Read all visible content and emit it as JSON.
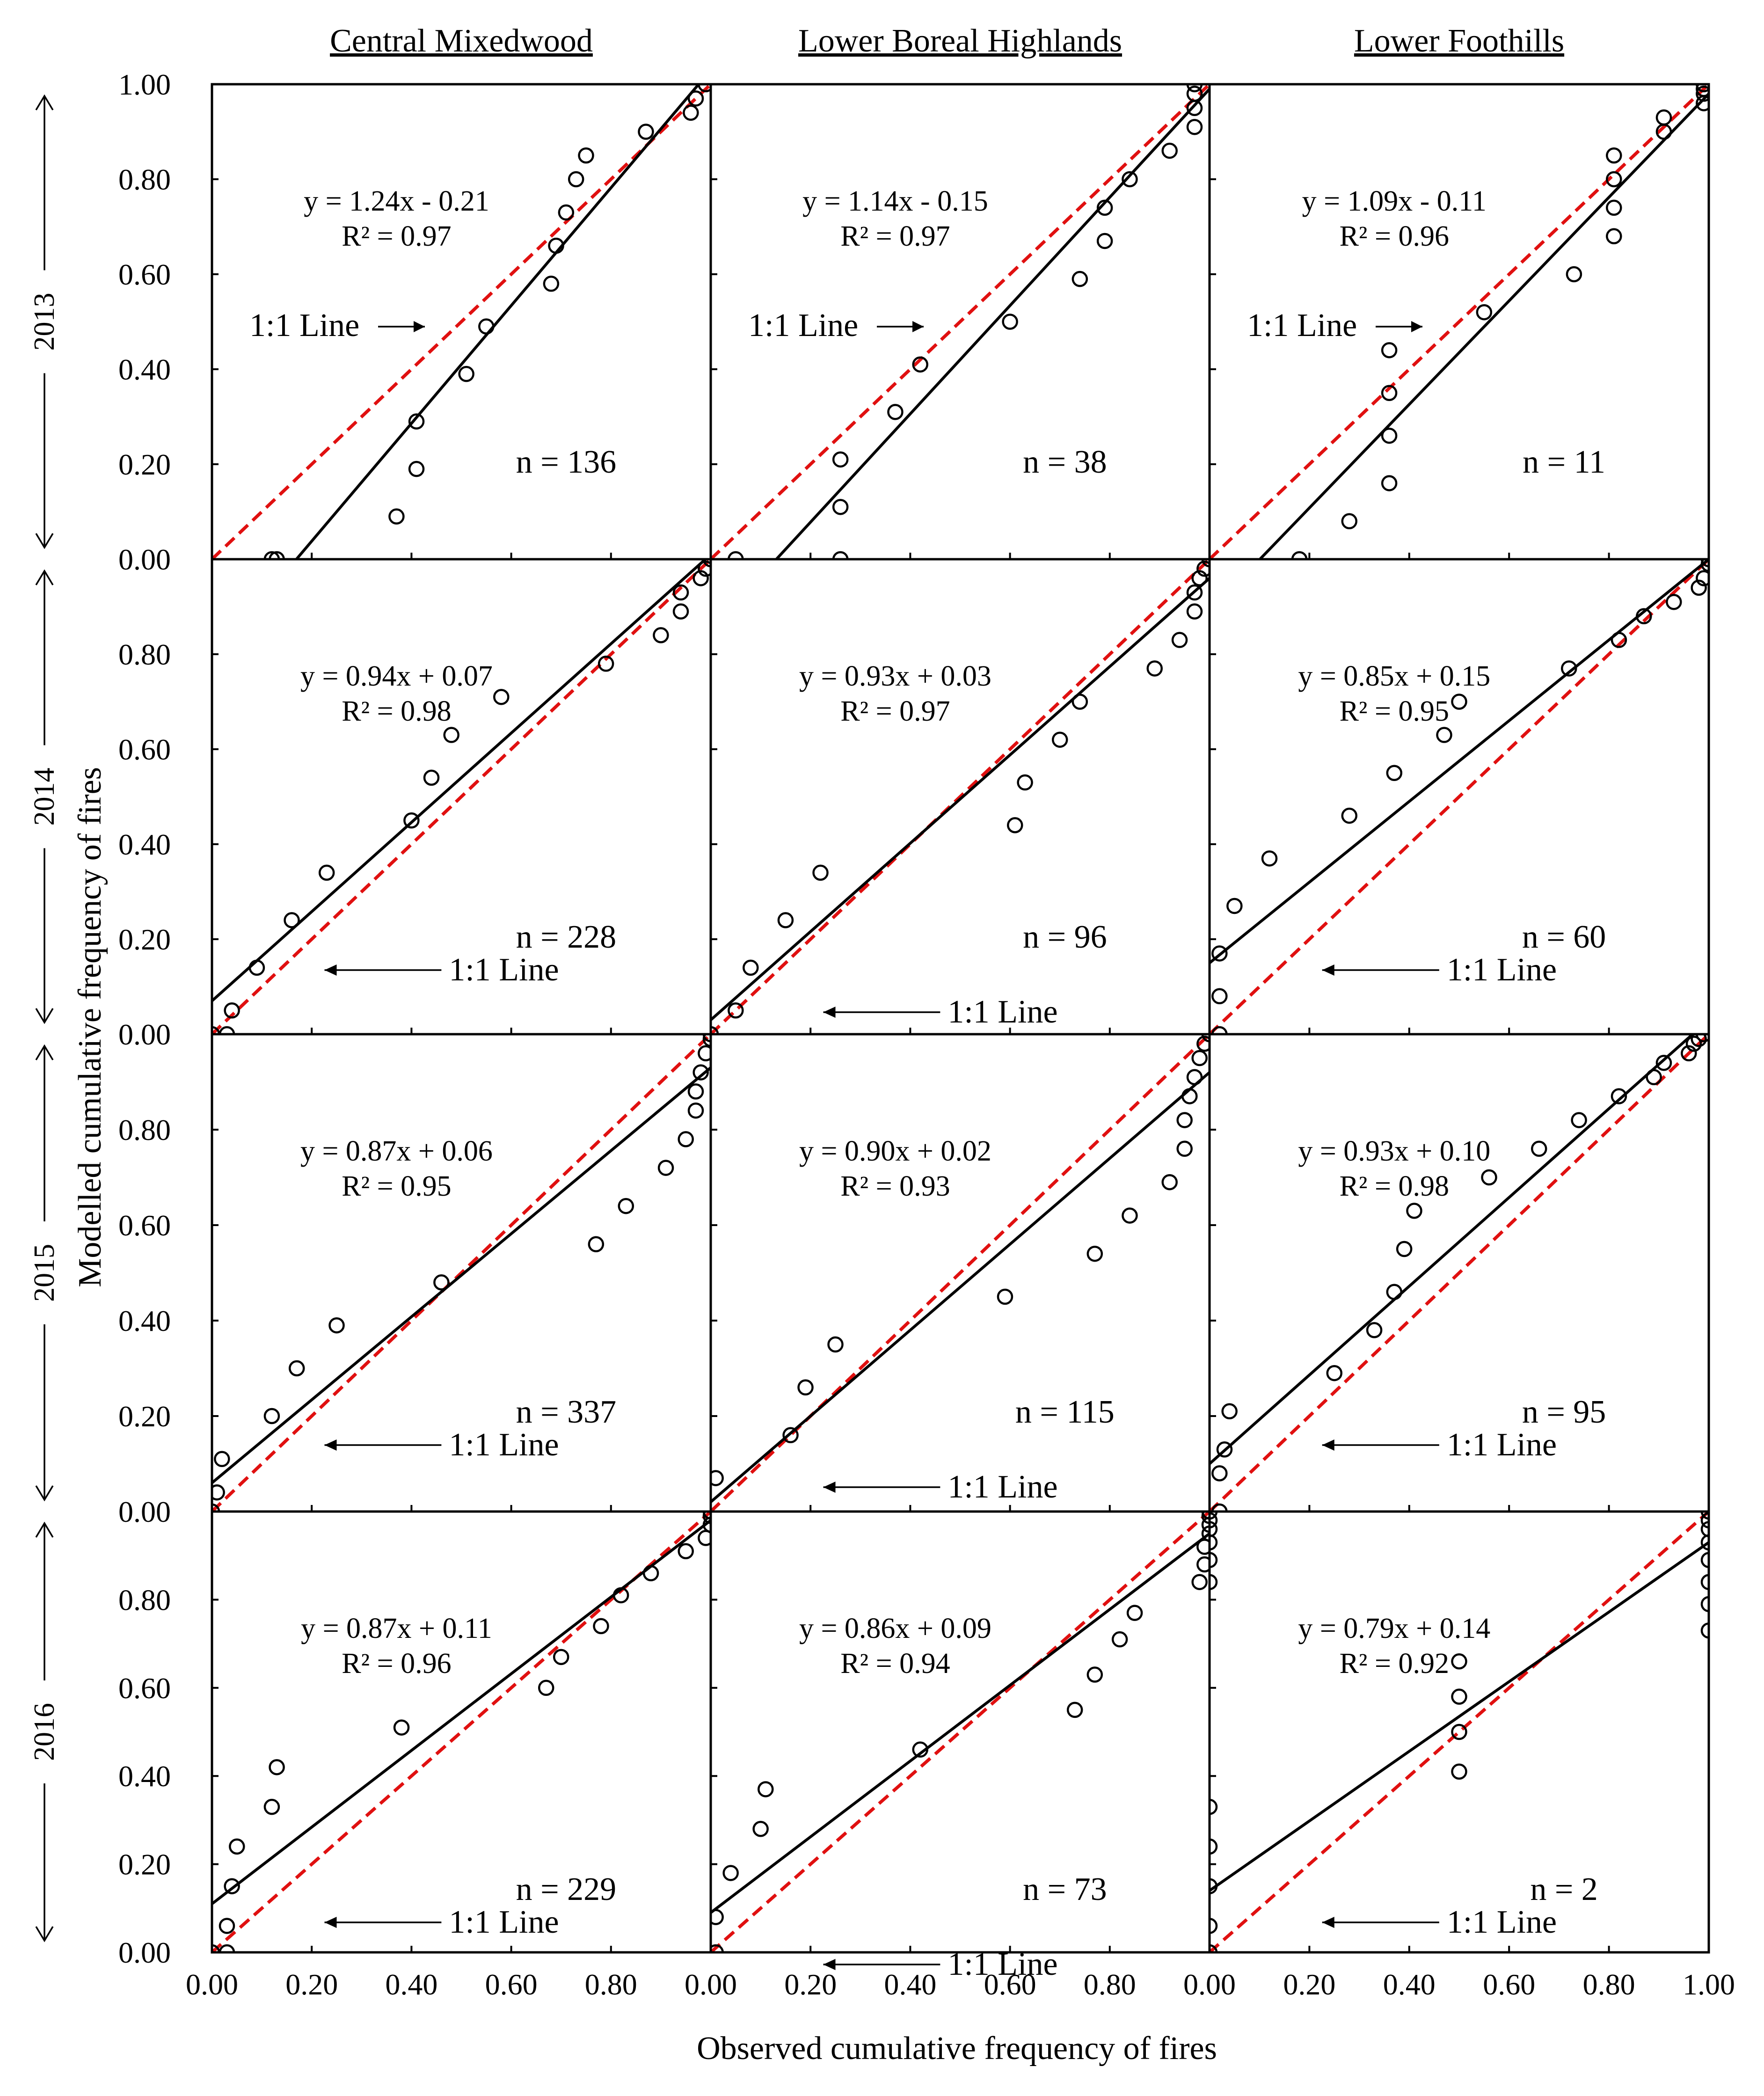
{
  "figure": {
    "x_title": "Observed cumulative frequency of fires",
    "y_title": "Modelled cumulative frequency of fires",
    "columns": [
      "Central Mixedwood",
      "Lower Boreal Highlands",
      "Lower Foothills"
    ],
    "rows": [
      "2013",
      "2014",
      "2015",
      "2016"
    ],
    "tick_labels": [
      "0.00",
      "0.20",
      "0.40",
      "0.60",
      "0.80",
      "1.00"
    ],
    "bottom_tick_labels": [
      [
        "0.00",
        "0.20",
        "0.40",
        "0.60",
        "0.80"
      ],
      [
        "0.00",
        "0.20",
        "0.40",
        "0.60",
        "0.80"
      ],
      [
        "0.00",
        "0.20",
        "0.40",
        "0.60",
        "0.80",
        "1.00"
      ]
    ],
    "ref_line_label": "1:1 Line",
    "colors": {
      "fit_line": "#000000",
      "ref_line": "#e01010",
      "points": "#000000"
    }
  },
  "chart_data": [
    {
      "type": "scatter",
      "row": "2013",
      "column": "Central Mixedwood",
      "equation": "y = 1.24x - 0.21",
      "r2_label": "R² = 0.97",
      "n_label": "n = 136",
      "slope": 1.24,
      "intercept": -0.21,
      "xlim": [
        0,
        1
      ],
      "ylim": [
        0,
        1
      ],
      "points": [
        [
          0.12,
          0.0
        ],
        [
          0.13,
          0.0
        ],
        [
          0.37,
          0.09
        ],
        [
          0.41,
          0.19
        ],
        [
          0.41,
          0.29
        ],
        [
          0.51,
          0.39
        ],
        [
          0.55,
          0.49
        ],
        [
          0.68,
          0.58
        ],
        [
          0.69,
          0.66
        ],
        [
          0.71,
          0.73
        ],
        [
          0.73,
          0.8
        ],
        [
          0.75,
          0.85
        ],
        [
          0.87,
          0.9
        ],
        [
          0.96,
          0.94
        ],
        [
          0.97,
          0.97
        ],
        [
          0.99,
          1.0
        ]
      ]
    },
    {
      "type": "scatter",
      "row": "2013",
      "column": "Lower Boreal Highlands",
      "equation": "y = 1.14x - 0.15",
      "r2_label": "R² = 0.97",
      "n_label": "n = 38",
      "slope": 1.14,
      "intercept": -0.15,
      "xlim": [
        0,
        1
      ],
      "ylim": [
        0,
        1
      ],
      "points": [
        [
          0.05,
          0.0
        ],
        [
          0.26,
          0.0
        ],
        [
          0.26,
          0.11
        ],
        [
          0.26,
          0.21
        ],
        [
          0.37,
          0.31
        ],
        [
          0.42,
          0.41
        ],
        [
          0.6,
          0.5
        ],
        [
          0.74,
          0.59
        ],
        [
          0.79,
          0.67
        ],
        [
          0.79,
          0.74
        ],
        [
          0.84,
          0.8
        ],
        [
          0.92,
          0.86
        ],
        [
          0.97,
          0.91
        ],
        [
          0.97,
          0.95
        ],
        [
          0.97,
          0.98
        ],
        [
          0.97,
          1.0
        ]
      ]
    },
    {
      "type": "scatter",
      "row": "2013",
      "column": "Lower Foothills",
      "equation": "y = 1.09x - 0.11",
      "r2_label": "R² = 0.96",
      "n_label": "n = 11",
      "slope": 1.09,
      "intercept": -0.11,
      "xlim": [
        0,
        1
      ],
      "ylim": [
        0,
        1
      ],
      "points": [
        [
          0.18,
          0.0
        ],
        [
          0.28,
          0.08
        ],
        [
          0.36,
          0.16
        ],
        [
          0.36,
          0.26
        ],
        [
          0.36,
          0.35
        ],
        [
          0.36,
          0.44
        ],
        [
          0.55,
          0.52
        ],
        [
          0.73,
          0.6
        ],
        [
          0.81,
          0.68
        ],
        [
          0.81,
          0.74
        ],
        [
          0.81,
          0.8
        ],
        [
          0.81,
          0.85
        ],
        [
          0.91,
          0.9
        ],
        [
          0.91,
          0.93
        ],
        [
          0.99,
          0.96
        ],
        [
          0.99,
          0.98
        ],
        [
          0.99,
          0.99
        ],
        [
          0.99,
          1.0
        ]
      ]
    },
    {
      "type": "scatter",
      "row": "2014",
      "column": "Central Mixedwood",
      "equation": "y = 0.94x + 0.07",
      "r2_label": "R² = 0.98",
      "n_label": "n = 228",
      "slope": 0.94,
      "intercept": 0.07,
      "xlim": [
        0,
        1
      ],
      "ylim": [
        0,
        1
      ],
      "points": [
        [
          0.0,
          0.0
        ],
        [
          0.03,
          0.0
        ],
        [
          0.04,
          0.05
        ],
        [
          0.09,
          0.14
        ],
        [
          0.16,
          0.24
        ],
        [
          0.23,
          0.34
        ],
        [
          0.4,
          0.45
        ],
        [
          0.44,
          0.54
        ],
        [
          0.48,
          0.63
        ],
        [
          0.58,
          0.71
        ],
        [
          0.79,
          0.78
        ],
        [
          0.9,
          0.84
        ],
        [
          0.94,
          0.89
        ],
        [
          0.94,
          0.93
        ],
        [
          0.98,
          0.96
        ],
        [
          0.99,
          0.98
        ],
        [
          1.0,
          1.0
        ]
      ]
    },
    {
      "type": "scatter",
      "row": "2014",
      "column": "Lower Boreal Highlands",
      "equation": "y = 0.93x + 0.03",
      "r2_label": "R² = 0.97",
      "n_label": "n = 96",
      "slope": 0.93,
      "intercept": 0.03,
      "xlim": [
        0,
        1
      ],
      "ylim": [
        0,
        1
      ],
      "points": [
        [
          0.0,
          0.0
        ],
        [
          0.05,
          0.05
        ],
        [
          0.08,
          0.14
        ],
        [
          0.15,
          0.24
        ],
        [
          0.22,
          0.34
        ],
        [
          0.61,
          0.44
        ],
        [
          0.63,
          0.53
        ],
        [
          0.7,
          0.62
        ],
        [
          0.74,
          0.7
        ],
        [
          0.89,
          0.77
        ],
        [
          0.94,
          0.83
        ],
        [
          0.97,
          0.89
        ],
        [
          0.97,
          0.93
        ],
        [
          0.98,
          0.96
        ],
        [
          0.99,
          0.98
        ],
        [
          1.0,
          1.0
        ]
      ]
    },
    {
      "type": "scatter",
      "row": "2014",
      "column": "Lower Foothills",
      "equation": "y = 0.85x + 0.15",
      "r2_label": "R² = 0.95",
      "n_label": "n = 60",
      "slope": 0.85,
      "intercept": 0.15,
      "xlim": [
        0,
        1
      ],
      "ylim": [
        0,
        1
      ],
      "points": [
        [
          0.02,
          0.0
        ],
        [
          0.02,
          0.08
        ],
        [
          0.02,
          0.17
        ],
        [
          0.05,
          0.27
        ],
        [
          0.12,
          0.37
        ],
        [
          0.28,
          0.46
        ],
        [
          0.37,
          0.55
        ],
        [
          0.47,
          0.63
        ],
        [
          0.5,
          0.7
        ],
        [
          0.72,
          0.77
        ],
        [
          0.82,
          0.83
        ],
        [
          0.87,
          0.88
        ],
        [
          0.93,
          0.91
        ],
        [
          0.98,
          0.94
        ],
        [
          0.99,
          0.96
        ],
        [
          1.0,
          0.99
        ],
        [
          1.0,
          1.0
        ]
      ]
    },
    {
      "type": "scatter",
      "row": "2015",
      "column": "Central Mixedwood",
      "equation": "y = 0.87x + 0.06",
      "r2_label": "R² = 0.95",
      "n_label": "n = 337",
      "slope": 0.87,
      "intercept": 0.06,
      "xlim": [
        0,
        1
      ],
      "ylim": [
        0,
        1
      ],
      "points": [
        [
          0.0,
          0.0
        ],
        [
          0.01,
          0.04
        ],
        [
          0.02,
          0.11
        ],
        [
          0.12,
          0.2
        ],
        [
          0.17,
          0.3
        ],
        [
          0.25,
          0.39
        ],
        [
          0.46,
          0.48
        ],
        [
          0.77,
          0.56
        ],
        [
          0.83,
          0.64
        ],
        [
          0.91,
          0.72
        ],
        [
          0.95,
          0.78
        ],
        [
          0.97,
          0.84
        ],
        [
          0.97,
          0.88
        ],
        [
          0.98,
          0.92
        ],
        [
          0.99,
          0.96
        ],
        [
          1.0,
          0.99
        ],
        [
          1.0,
          1.0
        ]
      ]
    },
    {
      "type": "scatter",
      "row": "2015",
      "column": "Lower Boreal Highlands",
      "equation": "y = 0.90x + 0.02",
      "r2_label": "R² = 0.93",
      "n_label": "n = 115",
      "slope": 0.9,
      "intercept": 0.02,
      "xlim": [
        0,
        1
      ],
      "ylim": [
        0,
        1
      ],
      "points": [
        [
          0.01,
          0.07
        ],
        [
          0.16,
          0.16
        ],
        [
          0.19,
          0.26
        ],
        [
          0.25,
          0.35
        ],
        [
          0.59,
          0.45
        ],
        [
          0.77,
          0.54
        ],
        [
          0.84,
          0.62
        ],
        [
          0.92,
          0.69
        ],
        [
          0.95,
          0.76
        ],
        [
          0.95,
          0.82
        ],
        [
          0.96,
          0.87
        ],
        [
          0.97,
          0.91
        ],
        [
          0.98,
          0.95
        ],
        [
          0.99,
          0.98
        ],
        [
          1.0,
          1.0
        ]
      ]
    },
    {
      "type": "scatter",
      "row": "2015",
      "column": "Lower Foothills",
      "equation": "y = 0.93x + 0.10",
      "r2_label": "R² = 0.98",
      "n_label": "n = 95",
      "slope": 0.93,
      "intercept": 0.1,
      "xlim": [
        0,
        1
      ],
      "ylim": [
        0,
        1
      ],
      "points": [
        [
          0.02,
          0.0
        ],
        [
          0.02,
          0.08
        ],
        [
          0.03,
          0.13
        ],
        [
          0.04,
          0.21
        ],
        [
          0.25,
          0.29
        ],
        [
          0.33,
          0.38
        ],
        [
          0.37,
          0.46
        ],
        [
          0.39,
          0.55
        ],
        [
          0.41,
          0.63
        ],
        [
          0.56,
          0.7
        ],
        [
          0.66,
          0.76
        ],
        [
          0.74,
          0.82
        ],
        [
          0.82,
          0.87
        ],
        [
          0.89,
          0.91
        ],
        [
          0.91,
          0.94
        ],
        [
          0.96,
          0.96
        ],
        [
          0.97,
          0.98
        ],
        [
          0.98,
          0.99
        ],
        [
          0.99,
          1.0
        ]
      ]
    },
    {
      "type": "scatter",
      "row": "2016",
      "column": "Central Mixedwood",
      "equation": "y = 0.87x + 0.11",
      "r2_label": "R² = 0.96",
      "n_label": "n = 229",
      "slope": 0.87,
      "intercept": 0.11,
      "xlim": [
        0,
        1
      ],
      "ylim": [
        0,
        1
      ],
      "points": [
        [
          0.0,
          0.0
        ],
        [
          0.03,
          0.0
        ],
        [
          0.03,
          0.06
        ],
        [
          0.04,
          0.15
        ],
        [
          0.05,
          0.24
        ],
        [
          0.12,
          0.33
        ],
        [
          0.13,
          0.42
        ],
        [
          0.38,
          0.51
        ],
        [
          0.67,
          0.6
        ],
        [
          0.7,
          0.67
        ],
        [
          0.78,
          0.74
        ],
        [
          0.82,
          0.81
        ],
        [
          0.88,
          0.86
        ],
        [
          0.95,
          0.91
        ],
        [
          0.99,
          0.94
        ],
        [
          1.0,
          0.97
        ],
        [
          1.0,
          0.99
        ],
        [
          1.0,
          1.0
        ]
      ]
    },
    {
      "type": "scatter",
      "row": "2016",
      "column": "Lower Boreal Highlands",
      "equation": "y = 0.86x + 0.09",
      "r2_label": "R² = 0.94",
      "n_label": "n = 73",
      "slope": 0.86,
      "intercept": 0.09,
      "xlim": [
        0,
        1
      ],
      "ylim": [
        0,
        1
      ],
      "points": [
        [
          0.01,
          0.0
        ],
        [
          0.01,
          0.08
        ],
        [
          0.04,
          0.18
        ],
        [
          0.1,
          0.28
        ],
        [
          0.11,
          0.37
        ],
        [
          0.42,
          0.46
        ],
        [
          0.73,
          0.55
        ],
        [
          0.77,
          0.63
        ],
        [
          0.82,
          0.71
        ],
        [
          0.85,
          0.77
        ],
        [
          0.98,
          0.84
        ],
        [
          0.99,
          0.88
        ],
        [
          0.99,
          0.92
        ],
        [
          1.0,
          0.95
        ],
        [
          1.0,
          0.97
        ],
        [
          1.0,
          0.99
        ],
        [
          1.0,
          1.0
        ]
      ]
    },
    {
      "type": "scatter",
      "row": "2016",
      "column": "Lower Foothills",
      "equation": "y = 0.79x + 0.14",
      "r2_label": "R² = 0.92",
      "n_label": "n = 2",
      "slope": 0.79,
      "intercept": 0.14,
      "xlim": [
        0,
        1
      ],
      "ylim": [
        0,
        1
      ],
      "points": [
        [
          0.0,
          0.0
        ],
        [
          0.0,
          0.06
        ],
        [
          0.0,
          0.15
        ],
        [
          0.0,
          0.24
        ],
        [
          0.0,
          0.33
        ],
        [
          0.5,
          0.41
        ],
        [
          0.5,
          0.5
        ],
        [
          0.5,
          0.58
        ],
        [
          0.5,
          0.66
        ],
        [
          1.0,
          0.73
        ],
        [
          1.0,
          0.79
        ],
        [
          1.0,
          0.84
        ],
        [
          1.0,
          0.89
        ],
        [
          1.0,
          0.93
        ],
        [
          1.0,
          0.96
        ],
        [
          1.0,
          0.98
        ],
        [
          1.0,
          1.0
        ],
        [
          0.0,
          0.84
        ],
        [
          0.0,
          0.89
        ],
        [
          0.0,
          0.93
        ],
        [
          0.0,
          0.96
        ],
        [
          0.0,
          0.98
        ],
        [
          0.0,
          1.0
        ]
      ]
    }
  ]
}
